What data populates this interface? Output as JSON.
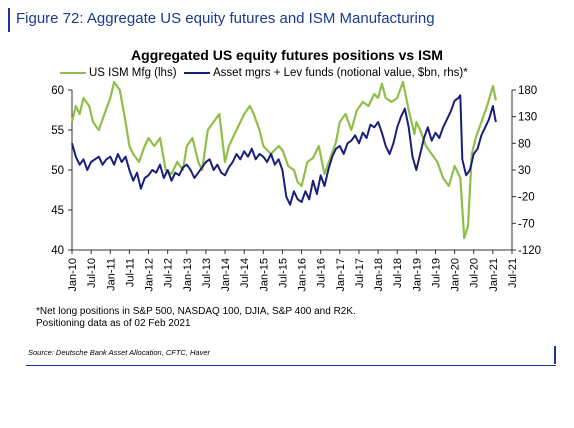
{
  "figure": {
    "title": "Figure 72: Aggregate US equity futures and ISM Manufacturing",
    "footnote_lines": [
      "*Net long positions in S&P 500, NASDAQ 100, DJIA, S&P 400 and R2K.",
      "Positioning data as of 02 Feb 2021"
    ],
    "source": "Source: Deutsche Bank Asset Allocation, CFTC, Haver"
  },
  "colors": {
    "title_blue": "#1a3a8f",
    "ism_green": "#8fbf4a",
    "futures_navy": "#1a1f7a"
  },
  "chart_data": {
    "type": "line",
    "title": "Aggregated US equity futures positions vs ISM",
    "legend_position": "top",
    "grid": false,
    "x_tick_labels": [
      "Jan-10",
      "Jul-10",
      "Jan-11",
      "Jul-11",
      "Jan-12",
      "Jul-12",
      "Jan-13",
      "Jul-13",
      "Jan-14",
      "Jul-14",
      "Jan-15",
      "Jul-15",
      "Jan-16",
      "Jul-16",
      "Jan-17",
      "Jul-17",
      "Jan-18",
      "Jul-18",
      "Jan-19",
      "Jul-19",
      "Jan-20",
      "Jul-20",
      "Jan-21",
      "Jul-21"
    ],
    "x_range": [
      2010.0,
      2021.5
    ],
    "y_left": {
      "range": [
        40,
        60
      ],
      "ticks": [
        40,
        45,
        50,
        55,
        60
      ]
    },
    "y_right": {
      "range": [
        -120,
        180
      ],
      "ticks": [
        -120,
        -70,
        -20,
        30,
        80,
        130,
        180
      ]
    },
    "series": [
      {
        "name": "US ISM Mfg (lhs)",
        "axis": "left",
        "points": [
          [
            2010.0,
            56
          ],
          [
            2010.1,
            58
          ],
          [
            2010.2,
            57
          ],
          [
            2010.3,
            59
          ],
          [
            2010.45,
            58
          ],
          [
            2010.55,
            56
          ],
          [
            2010.7,
            55
          ],
          [
            2010.85,
            57
          ],
          [
            2011.0,
            59
          ],
          [
            2011.1,
            61
          ],
          [
            2011.25,
            60
          ],
          [
            2011.4,
            56
          ],
          [
            2011.5,
            53
          ],
          [
            2011.6,
            52
          ],
          [
            2011.75,
            51
          ],
          [
            2011.9,
            53
          ],
          [
            2012.0,
            54
          ],
          [
            2012.15,
            53
          ],
          [
            2012.3,
            54
          ],
          [
            2012.45,
            50
          ],
          [
            2012.6,
            49.5
          ],
          [
            2012.75,
            51
          ],
          [
            2012.9,
            50
          ],
          [
            2013.0,
            53
          ],
          [
            2013.15,
            54
          ],
          [
            2013.3,
            51
          ],
          [
            2013.4,
            50
          ],
          [
            2013.55,
            55
          ],
          [
            2013.7,
            56
          ],
          [
            2013.85,
            57
          ],
          [
            2014.0,
            51
          ],
          [
            2014.1,
            53
          ],
          [
            2014.3,
            55
          ],
          [
            2014.5,
            57
          ],
          [
            2014.65,
            58
          ],
          [
            2014.75,
            57
          ],
          [
            2014.9,
            55
          ],
          [
            2015.0,
            53
          ],
          [
            2015.2,
            52
          ],
          [
            2015.4,
            53
          ],
          [
            2015.5,
            52.5
          ],
          [
            2015.65,
            50.5
          ],
          [
            2015.8,
            50
          ],
          [
            2015.9,
            48.5
          ],
          [
            2016.0,
            48
          ],
          [
            2016.15,
            51
          ],
          [
            2016.3,
            51.5
          ],
          [
            2016.45,
            53
          ],
          [
            2016.6,
            49.5
          ],
          [
            2016.75,
            51.5
          ],
          [
            2016.9,
            53.5
          ],
          [
            2017.0,
            56
          ],
          [
            2017.15,
            57
          ],
          [
            2017.3,
            55
          ],
          [
            2017.45,
            57.5
          ],
          [
            2017.6,
            58.5
          ],
          [
            2017.75,
            58
          ],
          [
            2017.9,
            59.5
          ],
          [
            2018.0,
            59
          ],
          [
            2018.1,
            60.8
          ],
          [
            2018.2,
            59
          ],
          [
            2018.35,
            58.5
          ],
          [
            2018.5,
            59
          ],
          [
            2018.65,
            61
          ],
          [
            2018.8,
            57.5
          ],
          [
            2018.95,
            54.5
          ],
          [
            2019.0,
            56
          ],
          [
            2019.1,
            55
          ],
          [
            2019.25,
            53
          ],
          [
            2019.4,
            52
          ],
          [
            2019.55,
            51
          ],
          [
            2019.7,
            49
          ],
          [
            2019.85,
            48
          ],
          [
            2020.0,
            50.5
          ],
          [
            2020.15,
            49
          ],
          [
            2020.25,
            41.5
          ],
          [
            2020.35,
            43
          ],
          [
            2020.45,
            52
          ],
          [
            2020.55,
            54
          ],
          [
            2020.7,
            56
          ],
          [
            2020.85,
            58
          ],
          [
            2021.0,
            60.5
          ],
          [
            2021.08,
            58.7
          ]
        ]
      },
      {
        "name": "Asset mgrs + Lev funds (notional value, $bn, rhs)*",
        "axis": "right",
        "points": [
          [
            2010.0,
            80
          ],
          [
            2010.1,
            55
          ],
          [
            2010.2,
            40
          ],
          [
            2010.3,
            50
          ],
          [
            2010.4,
            30
          ],
          [
            2010.5,
            45
          ],
          [
            2010.6,
            50
          ],
          [
            2010.7,
            55
          ],
          [
            2010.8,
            40
          ],
          [
            2010.9,
            50
          ],
          [
            2011.0,
            55
          ],
          [
            2011.1,
            40
          ],
          [
            2011.2,
            60
          ],
          [
            2011.3,
            45
          ],
          [
            2011.4,
            55
          ],
          [
            2011.5,
            30
          ],
          [
            2011.6,
            10
          ],
          [
            2011.7,
            25
          ],
          [
            2011.8,
            -5
          ],
          [
            2011.9,
            15
          ],
          [
            2012.0,
            20
          ],
          [
            2012.1,
            30
          ],
          [
            2012.2,
            25
          ],
          [
            2012.3,
            40
          ],
          [
            2012.4,
            15
          ],
          [
            2012.5,
            30
          ],
          [
            2012.6,
            10
          ],
          [
            2012.7,
            25
          ],
          [
            2012.8,
            20
          ],
          [
            2012.9,
            35
          ],
          [
            2013.0,
            40
          ],
          [
            2013.1,
            30
          ],
          [
            2013.2,
            15
          ],
          [
            2013.3,
            25
          ],
          [
            2013.4,
            35
          ],
          [
            2013.5,
            45
          ],
          [
            2013.6,
            50
          ],
          [
            2013.7,
            30
          ],
          [
            2013.8,
            40
          ],
          [
            2013.9,
            25
          ],
          [
            2014.0,
            20
          ],
          [
            2014.1,
            35
          ],
          [
            2014.2,
            45
          ],
          [
            2014.3,
            60
          ],
          [
            2014.4,
            50
          ],
          [
            2014.5,
            65
          ],
          [
            2014.6,
            55
          ],
          [
            2014.7,
            70
          ],
          [
            2014.8,
            50
          ],
          [
            2014.9,
            60
          ],
          [
            2015.0,
            55
          ],
          [
            2015.1,
            45
          ],
          [
            2015.2,
            60
          ],
          [
            2015.3,
            40
          ],
          [
            2015.4,
            50
          ],
          [
            2015.5,
            30
          ],
          [
            2015.6,
            -20
          ],
          [
            2015.7,
            -35
          ],
          [
            2015.8,
            -10
          ],
          [
            2015.9,
            -25
          ],
          [
            2016.0,
            -30
          ],
          [
            2016.1,
            -10
          ],
          [
            2016.2,
            -25
          ],
          [
            2016.3,
            10
          ],
          [
            2016.4,
            -15
          ],
          [
            2016.5,
            20
          ],
          [
            2016.6,
            0
          ],
          [
            2016.7,
            30
          ],
          [
            2016.8,
            55
          ],
          [
            2016.9,
            70
          ],
          [
            2017.0,
            75
          ],
          [
            2017.1,
            60
          ],
          [
            2017.2,
            80
          ],
          [
            2017.3,
            85
          ],
          [
            2017.4,
            95
          ],
          [
            2017.5,
            80
          ],
          [
            2017.6,
            100
          ],
          [
            2017.7,
            90
          ],
          [
            2017.8,
            115
          ],
          [
            2017.9,
            110
          ],
          [
            2018.0,
            120
          ],
          [
            2018.1,
            100
          ],
          [
            2018.2,
            75
          ],
          [
            2018.3,
            60
          ],
          [
            2018.4,
            80
          ],
          [
            2018.5,
            110
          ],
          [
            2018.6,
            130
          ],
          [
            2018.7,
            145
          ],
          [
            2018.8,
            110
          ],
          [
            2018.9,
            55
          ],
          [
            2019.0,
            30
          ],
          [
            2019.1,
            60
          ],
          [
            2019.2,
            90
          ],
          [
            2019.3,
            110
          ],
          [
            2019.4,
            85
          ],
          [
            2019.5,
            100
          ],
          [
            2019.6,
            90
          ],
          [
            2019.7,
            110
          ],
          [
            2019.8,
            125
          ],
          [
            2019.9,
            140
          ],
          [
            2020.0,
            160
          ],
          [
            2020.1,
            165
          ],
          [
            2020.15,
            170
          ],
          [
            2020.2,
            50
          ],
          [
            2020.3,
            20
          ],
          [
            2020.4,
            30
          ],
          [
            2020.5,
            60
          ],
          [
            2020.6,
            70
          ],
          [
            2020.7,
            95
          ],
          [
            2020.8,
            110
          ],
          [
            2020.9,
            125
          ],
          [
            2021.0,
            150
          ],
          [
            2021.05,
            130
          ],
          [
            2021.08,
            120
          ]
        ]
      }
    ]
  }
}
